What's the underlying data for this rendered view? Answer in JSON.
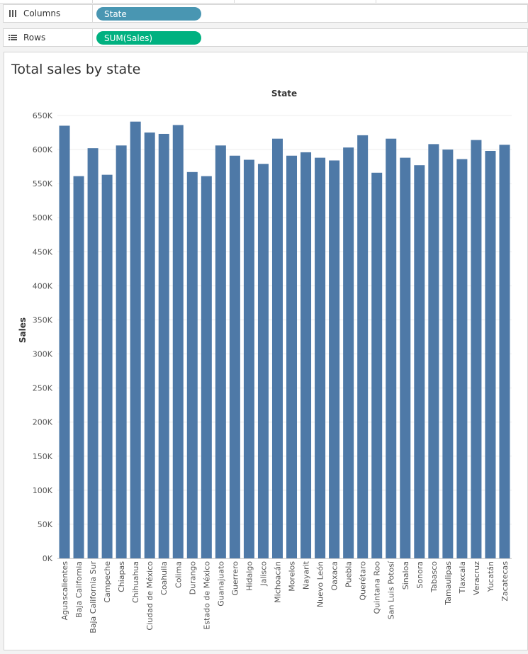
{
  "shelves": {
    "columns": {
      "label": "Columns",
      "pill": "State",
      "pill_color": "#4996b2"
    },
    "rows": {
      "label": "Rows",
      "pill": "SUM(Sales)",
      "pill_color": "#00b180"
    }
  },
  "sheet": {
    "title": "Total sales by state"
  },
  "colors": {
    "bar": "#4e79a7",
    "grid": "#eeeeee",
    "axis_text": "#555555"
  },
  "chart_data": {
    "type": "bar",
    "title": "Total sales by state",
    "xlabel": "State",
    "ylabel": "Sales",
    "ylim": [
      0,
      650000
    ],
    "yticks": [
      0,
      50000,
      100000,
      150000,
      200000,
      250000,
      300000,
      350000,
      400000,
      450000,
      500000,
      550000,
      600000,
      650000
    ],
    "ytick_labels": [
      "0K",
      "50K",
      "100K",
      "150K",
      "200K",
      "250K",
      "300K",
      "350K",
      "400K",
      "450K",
      "500K",
      "550K",
      "600K",
      "650K"
    ],
    "grid": true,
    "categories": [
      "Aguascalientes",
      "Baja California",
      "Baja California Sur",
      "Campeche",
      "Chiapas",
      "Chihuahua",
      "Ciudad de México",
      "Coahuila",
      "Colima",
      "Durango",
      "Estado de México",
      "Guanajuato",
      "Guerrero",
      "Hidalgo",
      "Jalisco",
      "Michoacán",
      "Morelos",
      "Nayarit",
      "Nuevo León",
      "Oaxaca",
      "Puebla",
      "Querétaro",
      "Quintana Roo",
      "San Luis Potosí",
      "Sinaloa",
      "Sonora",
      "Tabasco",
      "Tamaulipas",
      "Tlaxcala",
      "Veracruz",
      "Yucatán",
      "Zacatecas"
    ],
    "values": [
      635000,
      561000,
      602000,
      563000,
      606000,
      641000,
      625000,
      623000,
      636000,
      567000,
      561000,
      606000,
      591000,
      585000,
      579000,
      616000,
      591000,
      596000,
      588000,
      584000,
      603000,
      621000,
      566000,
      616000,
      588000,
      577000,
      608000,
      600000,
      586000,
      614000,
      598000,
      607000
    ]
  }
}
